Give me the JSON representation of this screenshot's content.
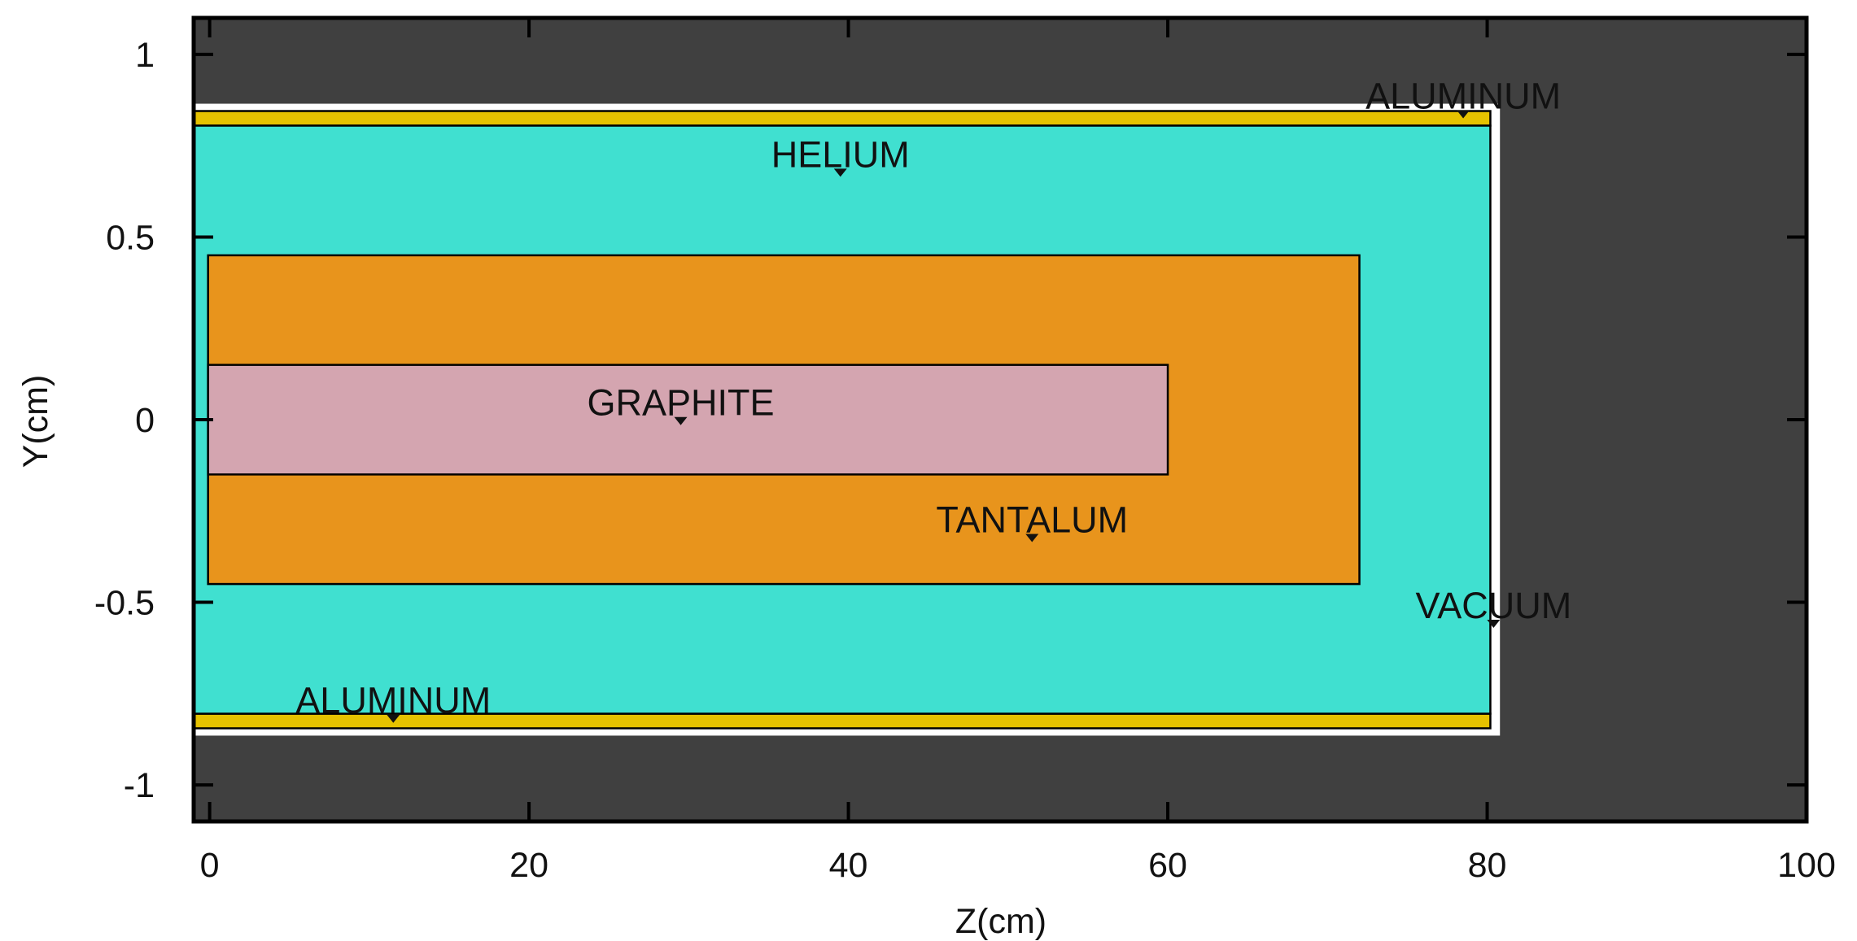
{
  "chart_data": {
    "type": "geometry-plot",
    "xlabel": "Z(cm)",
    "ylabel": "Y(cm)",
    "xlim": [
      -1,
      100
    ],
    "ylim": [
      -1.1,
      1.1
    ],
    "grid": false,
    "x_ticks": [
      {
        "value": 0,
        "label": "0"
      },
      {
        "value": 20,
        "label": "20"
      },
      {
        "value": 40,
        "label": "40"
      },
      {
        "value": 60,
        "label": "60"
      },
      {
        "value": 80,
        "label": "80"
      },
      {
        "value": 100,
        "label": "100"
      }
    ],
    "y_ticks": [
      {
        "value": 1,
        "label": "1"
      },
      {
        "value": 0.5,
        "label": "0.5"
      },
      {
        "value": 0,
        "label": "0"
      },
      {
        "value": -0.5,
        "label": "-0.5"
      },
      {
        "value": -1,
        "label": "-1"
      }
    ],
    "colors": {
      "vacuum": "#404040",
      "helium": "#40e0d0",
      "aluminum": "#e6c200",
      "tantalum": "#e8941c",
      "graphite": "#d4a5b0",
      "void": "#ffffff",
      "outline": "#000000"
    },
    "regions": [
      {
        "material": "vacuum",
        "z": [
          -1,
          100
        ],
        "y": [
          -1.1,
          1.1
        ]
      },
      {
        "material": "void",
        "z": [
          -1,
          80.8
        ],
        "y": [
          -0.865,
          0.865
        ]
      },
      {
        "material": "aluminum",
        "z": [
          -1,
          80.2
        ],
        "y": [
          0.805,
          0.845
        ]
      },
      {
        "material": "aluminum",
        "z": [
          -1,
          80.2
        ],
        "y": [
          -0.845,
          -0.805
        ]
      },
      {
        "material": "helium",
        "z": [
          -1,
          80.2
        ],
        "y": [
          -0.805,
          0.805
        ]
      },
      {
        "material": "tantalum",
        "z": [
          -0.1,
          72
        ],
        "y": [
          -0.45,
          0.45
        ]
      },
      {
        "material": "graphite",
        "z": [
          -0.1,
          60
        ],
        "y": [
          -0.15,
          0.15
        ]
      }
    ],
    "labels": [
      {
        "text": "HELIUM",
        "z": 39.5,
        "y": 0.665
      },
      {
        "text": "ALUMINUM",
        "z": 78.5,
        "y": 0.825
      },
      {
        "text": "GRAPHITE",
        "z": 29.5,
        "y": -0.015
      },
      {
        "text": "TANTALUM",
        "z": 51.5,
        "y": -0.335
      },
      {
        "text": "VACUUM",
        "z": 80.4,
        "y": -0.57
      },
      {
        "text": "ALUMINUM",
        "z": 11.5,
        "y": -0.83
      }
    ]
  }
}
